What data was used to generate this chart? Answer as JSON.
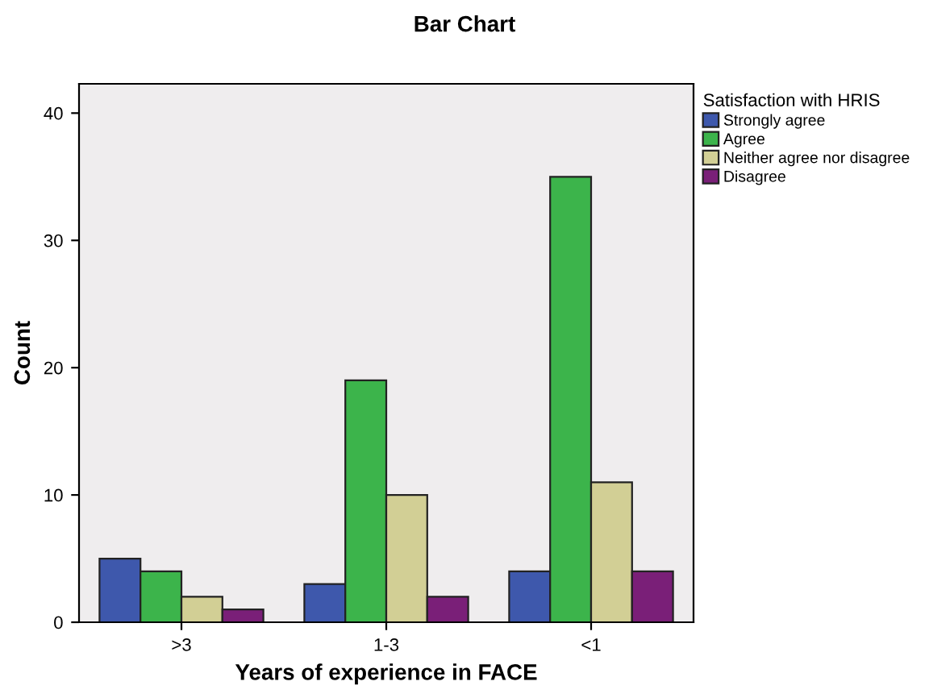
{
  "chart_data": {
    "type": "bar",
    "title": "Bar Chart",
    "xlabel": "Years of experience in FACE",
    "ylabel": "Count",
    "legend_title": "Satisfaction with HRIS",
    "categories": [
      ">3",
      "1-3",
      "<1"
    ],
    "series": [
      {
        "name": "Strongly agree",
        "color": "#3e58ac",
        "values": [
          5,
          3,
          4
        ]
      },
      {
        "name": "Agree",
        "color": "#3cb44b",
        "values": [
          4,
          19,
          35
        ]
      },
      {
        "name": "Neither agree nor disagree",
        "color": "#d2cf95",
        "values": [
          2,
          10,
          11
        ]
      },
      {
        "name": "Disagree",
        "color": "#7a1f78",
        "values": [
          1,
          2,
          4
        ]
      }
    ],
    "ylim": [
      0,
      42.3
    ],
    "yticks": [
      0,
      10,
      20,
      30,
      40
    ],
    "grid": false,
    "legend": "top right"
  }
}
